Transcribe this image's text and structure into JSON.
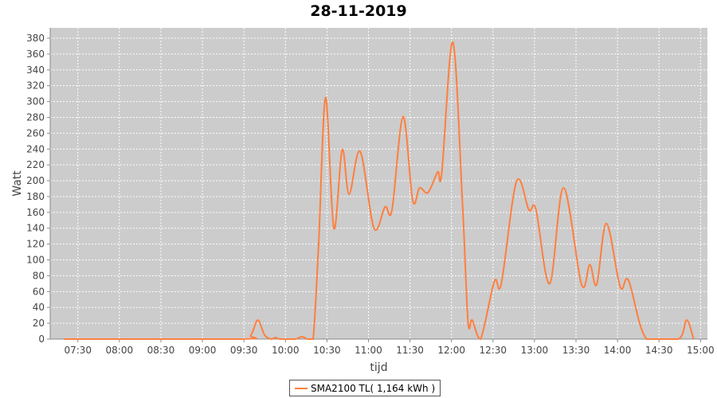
{
  "chart_data": {
    "type": "line",
    "title": "28-11-2019",
    "xlabel": "tijd",
    "ylabel": "Watt",
    "ylim": [
      0,
      380
    ],
    "yticks": [
      0,
      20,
      40,
      60,
      80,
      100,
      120,
      140,
      160,
      180,
      200,
      220,
      240,
      260,
      280,
      300,
      320,
      340,
      360,
      380
    ],
    "xlim": [
      "07:10",
      "15:05"
    ],
    "xticks": [
      "07:30",
      "08:00",
      "08:30",
      "09:00",
      "09:30",
      "10:00",
      "10:30",
      "11:00",
      "11:30",
      "12:00",
      "12:30",
      "13:00",
      "13:30",
      "14:00",
      "14:30",
      "15:00"
    ],
    "grid": true,
    "legend_position": "bottom",
    "background": "#cccccc",
    "series": [
      {
        "name": "SMA2100 TL( 1,164 kWh )",
        "color": "#ff7f3f",
        "x": [
          "07:20",
          "09:27",
          "09:35",
          "09:40",
          "09:45",
          "09:50",
          "09:53",
          "09:56",
          "10:07",
          "10:12",
          "10:16",
          "10:20",
          "10:24",
          "10:29",
          "10:35",
          "10:41",
          "10:46",
          "10:54",
          "11:04",
          "11:12",
          "11:17",
          "11:25",
          "11:32",
          "11:37",
          "11:43",
          "11:50",
          "11:53",
          "12:01",
          "12:08",
          "12:12",
          "12:15",
          "12:21",
          "12:31",
          "12:36",
          "12:47",
          "12:56",
          "13:01",
          "13:11",
          "13:21",
          "13:34",
          "13:40",
          "13:45",
          "13:52",
          "14:02",
          "14:08",
          "14:21",
          "14:44",
          "14:50",
          "14:55"
        ],
        "y": [
          0,
          0,
          5,
          24,
          5,
          0,
          2,
          0,
          0,
          3,
          0,
          0,
          120,
          305,
          140,
          239,
          183,
          237,
          140,
          167,
          163,
          281,
          175,
          191,
          185,
          211,
          210,
          375,
          170,
          21,
          24,
          0,
          73,
          70,
          199,
          163,
          164,
          70,
          191,
          69,
          94,
          69,
          146,
          66,
          74,
          0,
          0,
          24,
          0
        ]
      }
    ]
  }
}
